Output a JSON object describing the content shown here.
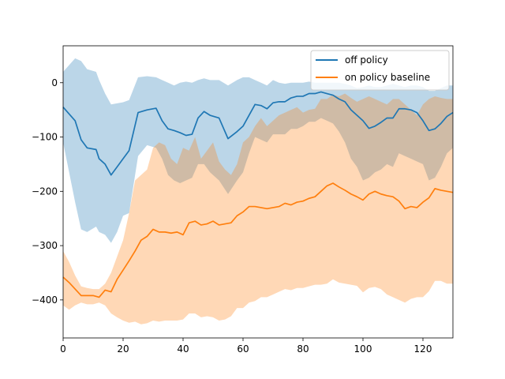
{
  "chart_data": {
    "type": "line",
    "title": "",
    "xlabel": "",
    "ylabel": "",
    "xlim": [
      0,
      130
    ],
    "ylim": [
      -470,
      68
    ],
    "xticks": [
      0,
      20,
      40,
      60,
      80,
      100,
      120
    ],
    "yticks": [
      0,
      -100,
      -200,
      -300,
      -400
    ],
    "grid": false,
    "legend_position": "top-right",
    "series": [
      {
        "name": "off policy",
        "color": "#1f77b4",
        "band_color": "#1f77b4",
        "band_opacity": 0.3,
        "x": [
          0,
          4,
          6,
          8,
          11,
          12,
          14,
          16,
          18,
          20,
          22,
          25,
          28,
          31,
          33,
          35,
          37,
          39,
          41,
          43,
          45,
          47,
          49,
          52,
          55,
          58,
          60,
          62,
          64,
          66,
          68,
          70,
          72,
          74,
          76,
          78,
          80,
          82,
          84,
          86,
          88,
          90,
          92,
          94,
          96,
          98,
          100,
          102,
          104,
          106,
          108,
          110,
          112,
          114,
          116,
          118,
          120,
          122,
          124,
          126,
          128,
          130
        ],
        "mean": [
          -45,
          -70,
          -105,
          -120,
          -123,
          -140,
          -150,
          -170,
          -155,
          -140,
          -125,
          -55,
          -50,
          -47,
          -70,
          -85,
          -88,
          -92,
          -97,
          -95,
          -65,
          -53,
          -60,
          -65,
          -103,
          -90,
          -80,
          -60,
          -40,
          -42,
          -48,
          -37,
          -35,
          -35,
          -28,
          -25,
          -25,
          -20,
          -20,
          -17,
          -20,
          -23,
          -30,
          -35,
          -50,
          -60,
          -70,
          -84,
          -80,
          -73,
          -65,
          -65,
          -48,
          -48,
          -50,
          -55,
          -70,
          -88,
          -85,
          -75,
          -62,
          -55
        ],
        "upper": [
          20,
          45,
          40,
          25,
          20,
          5,
          -20,
          -40,
          -38,
          -36,
          -32,
          10,
          12,
          10,
          5,
          0,
          -5,
          0,
          2,
          0,
          5,
          8,
          5,
          5,
          -5,
          5,
          10,
          10,
          5,
          0,
          -5,
          5,
          0,
          -2,
          0,
          0,
          0,
          2,
          0,
          0,
          0,
          0,
          0,
          -2,
          -5,
          -10,
          -8,
          -5,
          -8,
          -8,
          -5,
          -2,
          -5,
          -8,
          -5,
          -5,
          -8,
          -15,
          -15,
          -10,
          -5,
          -5
        ],
        "lower": [
          -110,
          -220,
          -270,
          -275,
          -265,
          -275,
          -280,
          -295,
          -275,
          -245,
          -240,
          -135,
          -115,
          -120,
          -140,
          -170,
          -180,
          -185,
          -180,
          -175,
          -150,
          -150,
          -165,
          -180,
          -205,
          -180,
          -165,
          -130,
          -100,
          -105,
          -110,
          -95,
          -95,
          -95,
          -85,
          -85,
          -80,
          -72,
          -72,
          -65,
          -70,
          -75,
          -90,
          -110,
          -140,
          -155,
          -180,
          -175,
          -165,
          -160,
          -150,
          -155,
          -130,
          -135,
          -140,
          -145,
          -150,
          -180,
          -175,
          -155,
          -130,
          -120
        ]
      },
      {
        "name": "on policy baseline",
        "color": "#ff7f0e",
        "band_color": "#ff7f0e",
        "band_opacity": 0.3,
        "x": [
          0,
          2,
          4,
          6,
          8,
          10,
          12,
          14,
          16,
          18,
          20,
          22,
          24,
          26,
          28,
          30,
          32,
          34,
          36,
          38,
          40,
          42,
          44,
          46,
          48,
          50,
          52,
          54,
          56,
          58,
          60,
          62,
          64,
          66,
          68,
          70,
          72,
          74,
          76,
          78,
          80,
          82,
          84,
          86,
          88,
          90,
          92,
          94,
          96,
          98,
          100,
          102,
          104,
          106,
          108,
          110,
          112,
          114,
          116,
          118,
          120,
          122,
          124,
          126,
          128,
          130
        ],
        "mean": [
          -358,
          -368,
          -380,
          -392,
          -392,
          -392,
          -395,
          -382,
          -385,
          -362,
          -345,
          -328,
          -310,
          -290,
          -283,
          -270,
          -275,
          -275,
          -277,
          -275,
          -280,
          -258,
          -255,
          -262,
          -260,
          -255,
          -262,
          -260,
          -258,
          -245,
          -238,
          -228,
          -228,
          -230,
          -232,
          -230,
          -228,
          -222,
          -225,
          -220,
          -218,
          -213,
          -210,
          -200,
          -190,
          -185,
          -192,
          -198,
          -205,
          -210,
          -216,
          -205,
          -200,
          -205,
          -208,
          -210,
          -218,
          -232,
          -228,
          -230,
          -220,
          -212,
          -195,
          -198,
          -200,
          -202
        ],
        "upper": [
          -310,
          -330,
          -355,
          -375,
          -378,
          -380,
          -380,
          -370,
          -350,
          -320,
          -290,
          -240,
          -180,
          -170,
          -160,
          -120,
          -110,
          -115,
          -140,
          -150,
          -120,
          -125,
          -100,
          -140,
          -125,
          -110,
          -145,
          -160,
          -170,
          -150,
          -110,
          -100,
          -80,
          -65,
          -80,
          -70,
          -60,
          -55,
          -50,
          -45,
          -55,
          -50,
          -48,
          -30,
          -30,
          -22,
          -25,
          -20,
          -28,
          -35,
          -30,
          -25,
          -30,
          -35,
          -40,
          -30,
          -30,
          -40,
          -50,
          -60,
          -40,
          -30,
          -25,
          -28,
          -30,
          -30
        ],
        "lower": [
          -410,
          -418,
          -410,
          -405,
          -408,
          -408,
          -405,
          -410,
          -425,
          -432,
          -438,
          -442,
          -440,
          -445,
          -443,
          -438,
          -440,
          -438,
          -438,
          -438,
          -436,
          -425,
          -425,
          -432,
          -430,
          -432,
          -438,
          -436,
          -430,
          -415,
          -415,
          -405,
          -402,
          -395,
          -395,
          -390,
          -385,
          -380,
          -382,
          -378,
          -378,
          -375,
          -372,
          -372,
          -370,
          -362,
          -368,
          -370,
          -372,
          -374,
          -386,
          -378,
          -376,
          -380,
          -390,
          -395,
          -400,
          -405,
          -398,
          -395,
          -395,
          -384,
          -365,
          -365,
          -370,
          -370
        ]
      }
    ]
  }
}
